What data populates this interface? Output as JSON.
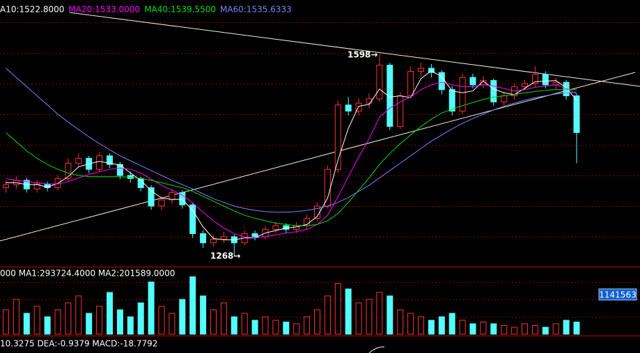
{
  "chart_data": {
    "type": "candlestick",
    "legend": [
      {
        "text": "A10:1522.8000",
        "color": "#ffffff"
      },
      {
        "text": "MA20:1533.0000",
        "color": "#ff00ff"
      },
      {
        "text": "MA40:1539.5500",
        "color": "#00e000"
      },
      {
        "text": "MA60:1535.6333",
        "color": "#8080ff"
      }
    ],
    "ylim": [
      1254.5,
      1677.3
    ],
    "grid_levels": [
      1650,
      1600,
      1550,
      1500,
      1450,
      1400,
      1350,
      1300
    ],
    "up_color": "#ff3232",
    "down_color": "#54fcfc",
    "open": [
      1380,
      1385,
      1392,
      1378,
      1386,
      1380,
      1395,
      1420,
      1428,
      1410,
      1432,
      1418,
      1400,
      1395,
      1380,
      1350,
      1360,
      1372,
      1352,
      1305,
      1290,
      1296,
      1300,
      1290,
      1305,
      1300,
      1312,
      1318,
      1312,
      1318,
      1330,
      1350,
      1410,
      1515,
      1505,
      1518,
      1525,
      1580,
      1480,
      1530,
      1570,
      1575,
      1568,
      1540,
      1505,
      1560,
      1548,
      1555,
      1520,
      1530,
      1545,
      1550,
      1565,
      1548,
      1552,
      1530
    ],
    "close": [
      1385,
      1392,
      1378,
      1386,
      1380,
      1395,
      1420,
      1428,
      1410,
      1432,
      1418,
      1400,
      1395,
      1380,
      1350,
      1360,
      1372,
      1352,
      1305,
      1290,
      1296,
      1300,
      1290,
      1305,
      1300,
      1312,
      1318,
      1312,
      1318,
      1330,
      1350,
      1410,
      1515,
      1505,
      1518,
      1525,
      1580,
      1480,
      1530,
      1570,
      1575,
      1568,
      1540,
      1505,
      1560,
      1548,
      1555,
      1520,
      1530,
      1545,
      1550,
      1565,
      1548,
      1552,
      1530,
      1470
    ],
    "high": [
      1392,
      1398,
      1396,
      1392,
      1390,
      1400,
      1428,
      1436,
      1432,
      1438,
      1436,
      1422,
      1406,
      1398,
      1384,
      1366,
      1378,
      1376,
      1356,
      1310,
      1302,
      1308,
      1304,
      1310,
      1310,
      1318,
      1324,
      1322,
      1324,
      1336,
      1356,
      1416,
      1522,
      1528,
      1526,
      1534,
      1598,
      1584,
      1536,
      1578,
      1584,
      1582,
      1572,
      1546,
      1566,
      1566,
      1562,
      1558,
      1536,
      1550,
      1556,
      1578,
      1570,
      1560,
      1556,
      1534
    ],
    "low": [
      1372,
      1378,
      1372,
      1372,
      1374,
      1376,
      1390,
      1414,
      1404,
      1406,
      1412,
      1394,
      1388,
      1374,
      1344,
      1344,
      1354,
      1346,
      1298,
      1282,
      1284,
      1290,
      1268,
      1286,
      1294,
      1296,
      1306,
      1306,
      1306,
      1312,
      1326,
      1346,
      1404,
      1498,
      1498,
      1510,
      1520,
      1474,
      1476,
      1526,
      1562,
      1560,
      1532,
      1498,
      1500,
      1542,
      1542,
      1514,
      1514,
      1524,
      1540,
      1544,
      1542,
      1540,
      1524,
      1420
    ],
    "ma": [
      {
        "color": "#ffffff",
        "values": [
          1388,
          1388,
          1385,
          1385,
          1381,
          1387,
          1398,
          1414,
          1419,
          1423,
          1420,
          1417,
          1404,
          1392,
          1375,
          1363,
          1361,
          1361,
          1343,
          1316,
          1297,
          1295,
          1295,
          1298,
          1298,
          1306,
          1310,
          1314,
          1316,
          1320,
          1333,
          1363,
          1425,
          1477,
          1513,
          1516,
          1541,
          1528,
          1530,
          1527,
          1558,
          1571,
          1561,
          1538,
          1535,
          1538,
          1554,
          1541,
          1535,
          1532,
          1542,
          1553,
          1554,
          1555,
          1543,
          1523
        ]
      },
      {
        "color": "#ff00ff",
        "values": [
          1395,
          1392,
          1390,
          1388,
          1386,
          1386,
          1390,
          1396,
          1402,
          1406,
          1410,
          1412,
          1410,
          1404,
          1394,
          1384,
          1376,
          1368,
          1355,
          1340,
          1326,
          1314,
          1305,
          1300,
          1298,
          1300,
          1303,
          1306,
          1308,
          1312,
          1320,
          1335,
          1365,
          1398,
          1430,
          1460,
          1495,
          1510,
          1520,
          1528,
          1540,
          1548,
          1552,
          1548,
          1545,
          1545,
          1548,
          1546,
          1542,
          1538,
          1540,
          1544,
          1546,
          1548,
          1542,
          1533
        ]
      },
      {
        "color": "#00e000",
        "values": [
          1470,
          1455,
          1440,
          1428,
          1418,
          1410,
          1404,
          1400,
          1398,
          1398,
          1398,
          1398,
          1397,
          1395,
          1392,
          1388,
          1384,
          1380,
          1374,
          1366,
          1358,
          1350,
          1342,
          1335,
          1330,
          1326,
          1322,
          1320,
          1318,
          1318,
          1320,
          1326,
          1338,
          1356,
          1376,
          1396,
          1418,
          1436,
          1452,
          1466,
          1480,
          1492,
          1502,
          1508,
          1514,
          1519,
          1524,
          1528,
          1530,
          1532,
          1535,
          1537,
          1539,
          1540,
          1540,
          1540
        ]
      },
      {
        "color": "#8080ff",
        "values": [
          1575,
          1560,
          1545,
          1530,
          1515,
          1500,
          1487,
          1475,
          1463,
          1452,
          1442,
          1432,
          1424,
          1416,
          1408,
          1400,
          1392,
          1385,
          1378,
          1370,
          1362,
          1356,
          1350,
          1346,
          1343,
          1341,
          1340,
          1340,
          1341,
          1343,
          1346,
          1350,
          1356,
          1364,
          1374,
          1384,
          1396,
          1408,
          1420,
          1432,
          1444,
          1456,
          1466,
          1476,
          1485,
          1493,
          1500,
          1507,
          1513,
          1518,
          1523,
          1527,
          1530,
          1533,
          1535,
          1536
        ]
      }
    ],
    "annotations": [
      "1598→",
      "1268→"
    ],
    "volume": [
      700000,
      1000000,
      600000,
      800000,
      500000,
      700000,
      900000,
      1100000,
      600000,
      800000,
      1200000,
      700000,
      500000,
      900000,
      1500000,
      800000,
      600000,
      1000000,
      1650000,
      1100000,
      700000,
      900000,
      500000,
      600000,
      400000,
      500000,
      400000,
      350000,
      300000,
      500000,
      700000,
      1100000,
      1450000,
      1300000,
      900000,
      1000000,
      1200000,
      1100000,
      700000,
      600000,
      500000,
      400000,
      500000,
      600000,
      400000,
      300000,
      350000,
      300000,
      250000,
      200000,
      300000,
      250000,
      200000,
      300000,
      400000,
      350000
    ],
    "volume_ylim": [
      0,
      1900000
    ],
    "volume_grid_levels": [
      500000,
      1000000,
      1500000
    ],
    "volume_legend": "000 MA1:293724.4000 MA2:201589.0000",
    "volume_marker": 1141563,
    "macd_legend": "10.3275 DEA:-0.9379 MACD:-18.7792"
  }
}
